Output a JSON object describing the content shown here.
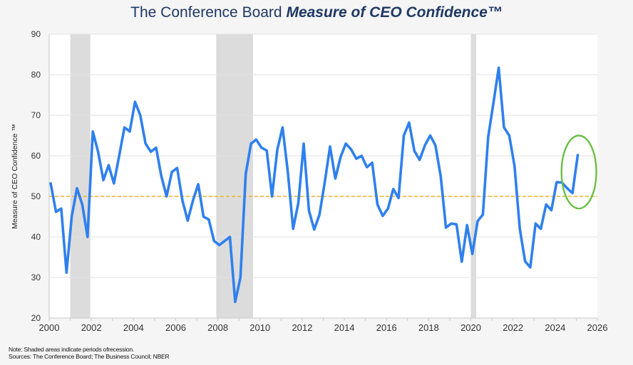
{
  "title": {
    "prefix": "The Conference Board",
    "emphasis": "Measure of CEO Confidence™"
  },
  "notes": {
    "note": "Note: Shaded areas indicate periods ofrecession.",
    "sources": "Sources: The Conference Board; The Business Council; NBER"
  },
  "colors": {
    "line": "#2f80ed",
    "reference": "#f0b429",
    "highlight": "#6abf45",
    "recession": "#dcdcdc",
    "grid": "#e2e2e2"
  },
  "chart_data": {
    "type": "line",
    "title": "The Conference Board Measure of CEO Confidence™",
    "xlabel": "",
    "ylabel": "Measure of CEO Confidence ™",
    "xlim": [
      2000,
      2026
    ],
    "ylim": [
      20,
      90
    ],
    "x_ticks": [
      "2000",
      "2002",
      "2004",
      "2006",
      "2008",
      "2010",
      "2012",
      "2014",
      "2016",
      "2018",
      "2020",
      "2022",
      "2024",
      "2026"
    ],
    "y_ticks": [
      "20",
      "30",
      "40",
      "50",
      "60",
      "70",
      "80",
      "90"
    ],
    "grid": "horizontal",
    "frequency": "quarterly",
    "start": "2000Q1",
    "series": [
      {
        "name": "Measure of CEO Confidence",
        "values": [
          53.2,
          46.2,
          47.0,
          31.2,
          45.0,
          52.0,
          48.0,
          40.0,
          66.0,
          61.0,
          54.0,
          57.7,
          53.2,
          60.0,
          67.0,
          66.0,
          73.3,
          70.0,
          63.0,
          61.0,
          62.0,
          55.0,
          50.0,
          56.0,
          57.0,
          49.0,
          44.0,
          49.0,
          53.0,
          45.0,
          44.3,
          39.0,
          38.0,
          39.0,
          40.0,
          24.0,
          30.0,
          55.5,
          63.0,
          64.0,
          62.0,
          61.3,
          50.0,
          61.5,
          67.0,
          56.0,
          42.0,
          48.5,
          63.0,
          46.5,
          41.8,
          45.5,
          53.5,
          62.3,
          54.4,
          59.7,
          63.0,
          61.6,
          59.3,
          60.0,
          57.2,
          58.3,
          48.0,
          45.2,
          47.0,
          51.8,
          49.6,
          65.0,
          68.2,
          61.2,
          59.0,
          62.6,
          65.0,
          62.6,
          55.0,
          42.3,
          43.3,
          43.1,
          33.9,
          42.9,
          35.8,
          43.9,
          45.5,
          64.6,
          73.0,
          81.7,
          67.0,
          65.0,
          57.5,
          42.0,
          34.0,
          32.5,
          43.3,
          42.0,
          48.0,
          46.6,
          53.5,
          53.4,
          52.0,
          50.8,
          60.2
        ]
      }
    ],
    "reference_line": {
      "value": 50,
      "style": "dashed"
    },
    "recessions": [
      {
        "start": 2001.0,
        "end": 2001.95
      },
      {
        "start": 2007.92,
        "end": 2009.67
      },
      {
        "start": 2020.0,
        "end": 2020.25
      }
    ],
    "annotation": {
      "type": "ellipse",
      "label": "latest reading highlight",
      "x_range": [
        2024.3,
        2025.95
      ],
      "y_range": [
        47,
        65
      ]
    }
  }
}
